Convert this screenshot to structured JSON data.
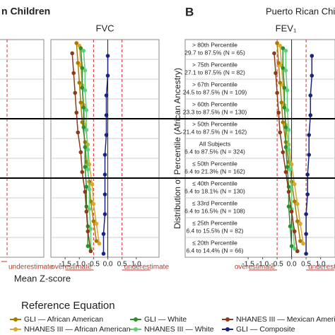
{
  "figure": {
    "panel_a_title": "n Children",
    "panel_b_label": "B",
    "panel_b_title": "Puerto Rican Children",
    "left_panel_x_label": "Mean Z-score",
    "left_panel_annotation": "underestimate",
    "y_label": "Distribution of Percentile (African Ancestry)",
    "legend_title": "Reference Equation"
  },
  "chart_data": [
    {
      "type": "dot",
      "title": "FVC",
      "xlim": [
        -2,
        1.8
      ],
      "xticks": [
        -1.5,
        {
          "value": -1,
          "label": "-1.0"
        },
        -0.5,
        {
          "value": 0,
          "label": "0.0"
        },
        0.5,
        {
          "value": 1,
          "label": "1.0"
        }
      ],
      "ref_lines": [
        -0.5,
        0.5
      ],
      "annotations": [
        "overestimate",
        "underestimate"
      ],
      "categories": [
        null,
        null,
        null,
        null,
        null,
        null,
        null,
        null,
        null,
        null,
        null
      ],
      "series": [
        {
          "name": "GLI — African American",
          "color": "#a67c00",
          "values": [
            -1.1,
            -1.05,
            -1.0,
            -0.95,
            -0.9,
            -0.8,
            -0.75,
            -0.65,
            -0.6,
            -0.5,
            -0.4
          ]
        },
        {
          "name": "NHANES III — African American",
          "color": "#d9a830",
          "values": [
            -1.0,
            -0.95,
            -0.9,
            -0.85,
            -0.8,
            -0.7,
            -0.65,
            -0.55,
            -0.5,
            -0.4,
            -0.3
          ]
        },
        {
          "name": "GLI — White",
          "color": "#2e8b2e",
          "values": [
            -0.95,
            -0.9,
            -0.9,
            -0.85,
            -0.85,
            -0.8,
            -0.8,
            -0.75,
            -0.75,
            -0.7,
            -0.7
          ]
        },
        {
          "name": "NHANES III — White",
          "color": "#5fcf7a",
          "values": [
            -0.85,
            -0.8,
            -0.8,
            -0.75,
            -0.75,
            -0.7,
            -0.7,
            -0.65,
            -0.65,
            -0.6,
            -0.6
          ]
        },
        {
          "name": "NHANES III — Mexican American",
          "color": "#8b3a1a",
          "values": [
            -1.25,
            -1.2,
            -1.15,
            -1.1,
            -1.05,
            -0.95,
            -0.9,
            -0.8,
            -0.75,
            -0.7,
            -0.6
          ]
        },
        {
          "name": "GLI — Composite",
          "color": "#1a237e",
          "values": [
            0,
            0,
            -0.05,
            -0.05,
            -0.05,
            -0.1,
            -0.1,
            -0.1,
            -0.1,
            -0.15,
            -0.15
          ]
        }
      ]
    },
    {
      "type": "dot",
      "title": "FEV₁",
      "xlim": [
        -1.6,
        1.5
      ],
      "xticks": [
        -1.5,
        {
          "value": -1,
          "label": "-1.0"
        },
        -0.5,
        {
          "value": 0,
          "label": "0.0"
        },
        0.5,
        {
          "value": 1,
          "label": "1.0"
        }
      ],
      "ref_lines": [
        -0.5,
        0.5
      ],
      "annotations": [
        "overestimate",
        "underestimate"
      ],
      "categories": [
        "> 80th Percentile",
        "> 75th Percentile",
        "> 67th Percentile",
        "> 60th Percentile",
        "> 50th Percentile",
        "All Subjects",
        "≤ 50th Percentile",
        "≤ 40th Percentile",
        "≤ 33rd Percentile",
        "≤ 25th Percentile",
        "≤ 20th Percentile"
      ],
      "category_details": [
        "29.7 to 87.5% (N = 65)",
        "27.1 to 87.5% (N = 82)",
        "24.5 to 87.5% (N = 109)",
        "23.3 to 87.5% (N = 130)",
        "21.4 to 87.5% (N = 162)",
        "6.4 to 87.5% (N = 324)",
        "6.4 to 21.3% (N = 162)",
        "6.4 to 18.1% (N = 130)",
        "6.4 to 16.5% (N = 108)",
        "6.4 to 15.5% (N = 82)",
        "6.4 to 14.4% (N = 66)"
      ],
      "series": [
        {
          "name": "GLI — African American",
          "color": "#a67c00",
          "values": [
            -0.5,
            -0.45,
            -0.4,
            -0.35,
            -0.3,
            -0.2,
            -0.1,
            0,
            0.1,
            0.2,
            0.3
          ]
        },
        {
          "name": "NHANES III — African American",
          "color": "#d9a830",
          "values": [
            -0.4,
            -0.35,
            -0.3,
            -0.25,
            -0.2,
            -0.1,
            0,
            0.1,
            0.2,
            0.3,
            0.4
          ]
        },
        {
          "name": "GLI — White",
          "color": "#2e8b2e",
          "values": [
            -0.3,
            -0.3,
            -0.25,
            -0.25,
            -0.2,
            -0.2,
            -0.15,
            -0.1,
            -0.1,
            -0.05,
            0
          ]
        },
        {
          "name": "NHANES III — White",
          "color": "#5fcf7a",
          "values": [
            -0.2,
            -0.2,
            -0.15,
            -0.15,
            -0.1,
            -0.1,
            -0.05,
            0,
            0,
            0.05,
            0.1
          ]
        },
        {
          "name": "NHANES III — Mexican American",
          "color": "#8b3a1a",
          "values": [
            -0.6,
            -0.55,
            -0.5,
            -0.45,
            -0.4,
            -0.3,
            -0.2,
            -0.1,
            0,
            0.1,
            0.2
          ]
        },
        {
          "name": "GLI — Composite",
          "color": "#1a237e",
          "values": [
            0.7,
            0.7,
            0.65,
            0.65,
            0.6,
            0.6,
            0.55,
            0.55,
            0.5,
            0.5,
            0.5
          ]
        }
      ]
    }
  ]
}
